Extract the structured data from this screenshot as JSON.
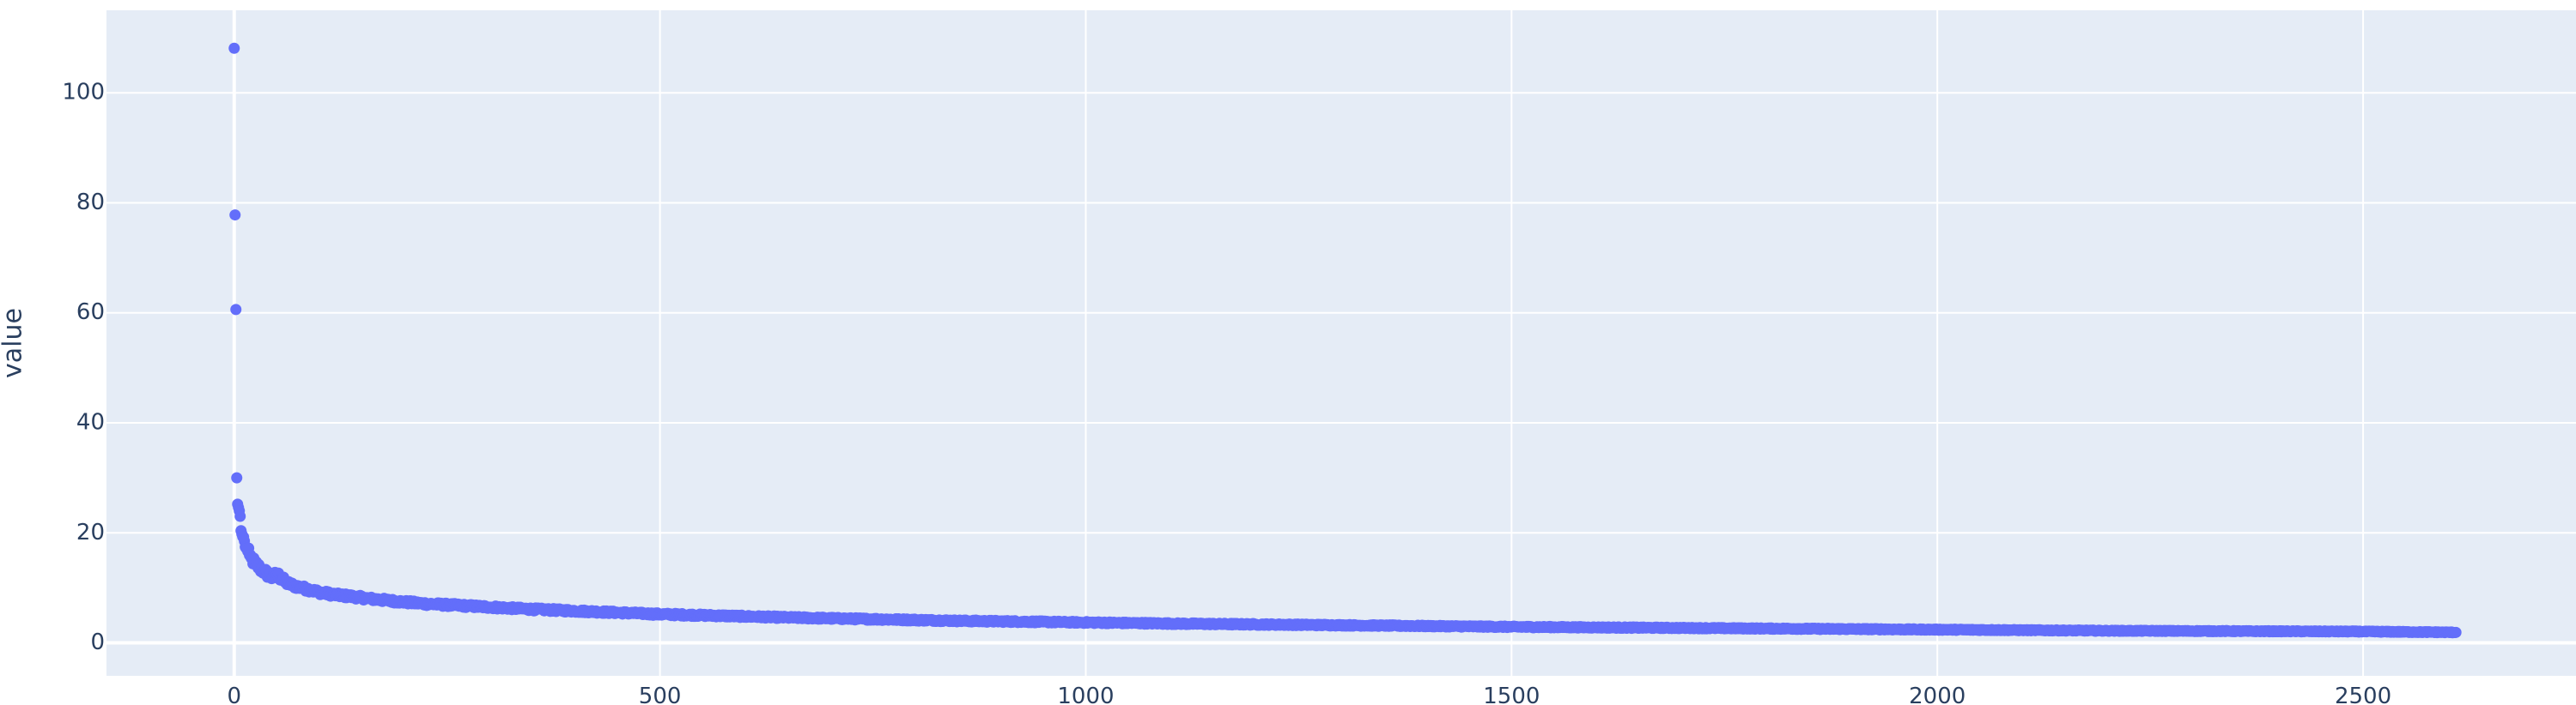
{
  "chart_data": {
    "type": "scatter",
    "title": "",
    "xlabel": "",
    "ylabel": "value",
    "xlim": [
      -150,
      2750
    ],
    "ylim": [
      -6,
      115
    ],
    "xticks": [
      0,
      500,
      1000,
      1500,
      2000,
      2500
    ],
    "yticks": [
      0,
      20,
      40,
      60,
      80,
      100
    ],
    "grid": true,
    "legend": "none",
    "n_points": 2610,
    "colors": {
      "marker": "#636efa",
      "plot_bg": "#e5ecf6",
      "grid": "#ffffff",
      "text": "#2a3f5f"
    },
    "points": [
      [
        0,
        108.1
      ],
      [
        1,
        77.8
      ],
      [
        2,
        60.6
      ],
      [
        3,
        30.0
      ],
      [
        4,
        25.2
      ],
      [
        5,
        24.6
      ],
      [
        6,
        24.0
      ],
      [
        7,
        23.0
      ],
      [
        8,
        20.4
      ],
      [
        9,
        19.8
      ],
      [
        10,
        19.3
      ],
      [
        12,
        18.5
      ],
      [
        14,
        17.2
      ],
      [
        16,
        16.6
      ],
      [
        18,
        15.9
      ],
      [
        20,
        15.4
      ],
      [
        25,
        14.3
      ],
      [
        30,
        13.6
      ],
      [
        35,
        13.0
      ],
      [
        40,
        12.4
      ],
      [
        45,
        11.9
      ],
      [
        50,
        12.5
      ],
      [
        60,
        11.0
      ],
      [
        70,
        10.4
      ],
      [
        80,
        10.0
      ],
      [
        90,
        9.6
      ],
      [
        100,
        9.2
      ],
      [
        120,
        8.7
      ],
      [
        140,
        8.4
      ],
      [
        160,
        8.0
      ],
      [
        180,
        7.7
      ],
      [
        200,
        7.4
      ],
      [
        225,
        7.1
      ],
      [
        250,
        6.9
      ],
      [
        275,
        6.7
      ],
      [
        300,
        6.5
      ],
      [
        350,
        6.1
      ],
      [
        400,
        5.8
      ],
      [
        450,
        5.5
      ],
      [
        500,
        5.2
      ],
      [
        550,
        5.0
      ],
      [
        600,
        4.8
      ],
      [
        650,
        4.6
      ],
      [
        700,
        4.45
      ],
      [
        750,
        4.3
      ],
      [
        800,
        4.15
      ],
      [
        850,
        4.0
      ],
      [
        900,
        3.9
      ],
      [
        950,
        3.8
      ],
      [
        1000,
        3.7
      ],
      [
        1100,
        3.5
      ],
      [
        1200,
        3.35
      ],
      [
        1300,
        3.2
      ],
      [
        1400,
        3.05
      ],
      [
        1500,
        2.9
      ],
      [
        1600,
        2.8
      ],
      [
        1700,
        2.7
      ],
      [
        1800,
        2.6
      ],
      [
        1900,
        2.5
      ],
      [
        2000,
        2.4
      ],
      [
        2100,
        2.3
      ],
      [
        2200,
        2.2
      ],
      [
        2300,
        2.15
      ],
      [
        2400,
        2.1
      ],
      [
        2500,
        2.05
      ],
      [
        2609,
        1.9
      ]
    ]
  }
}
